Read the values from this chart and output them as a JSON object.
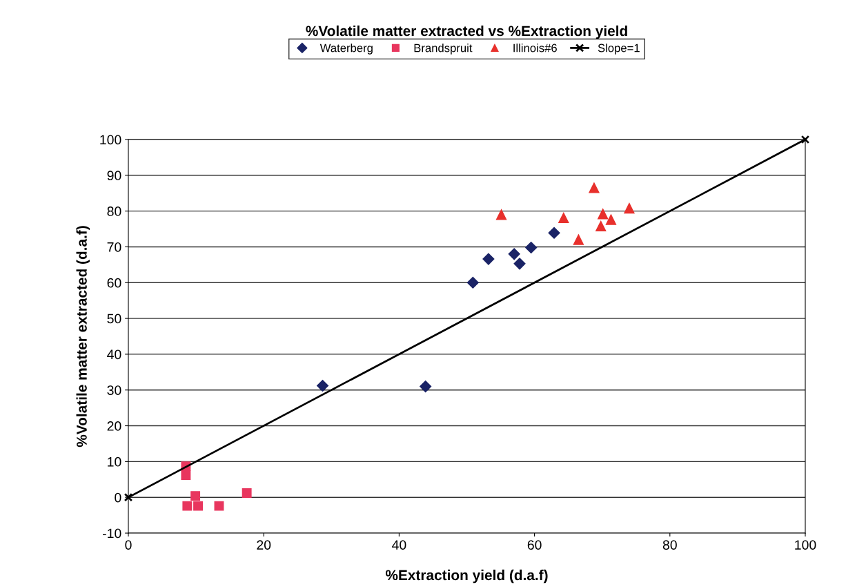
{
  "chart_data": {
    "type": "scatter",
    "title": "%Volatile matter extracted vs %Extraction yield",
    "xlabel": "%Extraction yield (d.a.f)",
    "ylabel": "%Volatile matter extracted (d.a.f)",
    "xlim": [
      0,
      100
    ],
    "ylim": [
      -10,
      100
    ],
    "xticks": [
      0,
      20,
      40,
      60,
      80,
      100
    ],
    "yticks": [
      -10,
      0,
      10,
      20,
      30,
      40,
      50,
      60,
      70,
      80,
      90,
      100
    ],
    "grid": "y",
    "legend": "top",
    "series": [
      {
        "name": "Waterberg",
        "color": "#1a2366",
        "marker": "diamond",
        "x": [
          28.7,
          43.9,
          50.9,
          53.2,
          57.0,
          57.8,
          59.5,
          62.9
        ],
        "values": [
          31.2,
          31.0,
          60.0,
          66.6,
          68.0,
          65.3,
          69.8,
          73.9
        ]
      },
      {
        "name": "Brandspruit",
        "color": "#e8365e",
        "marker": "square",
        "x": [
          8.5,
          8.5,
          9.9,
          8.7,
          10.3,
          13.4,
          17.5
        ],
        "values": [
          8.7,
          6.2,
          0.4,
          -2.4,
          -2.4,
          -2.4,
          1.2
        ]
      },
      {
        "name": "Illinois#6",
        "color": "#e8302c",
        "marker": "triangle",
        "x": [
          55.1,
          68.8,
          64.3,
          66.5,
          70.1,
          69.8,
          71.3,
          74.0
        ],
        "values": [
          79.0,
          86.5,
          78.1,
          72.0,
          79.2,
          75.8,
          77.6,
          80.8
        ]
      },
      {
        "name": "Slope=1",
        "type": "line",
        "color": "#000000",
        "marker": "cross",
        "line_style": "solid",
        "x": [
          0,
          100
        ],
        "values": [
          0,
          100
        ]
      }
    ]
  }
}
